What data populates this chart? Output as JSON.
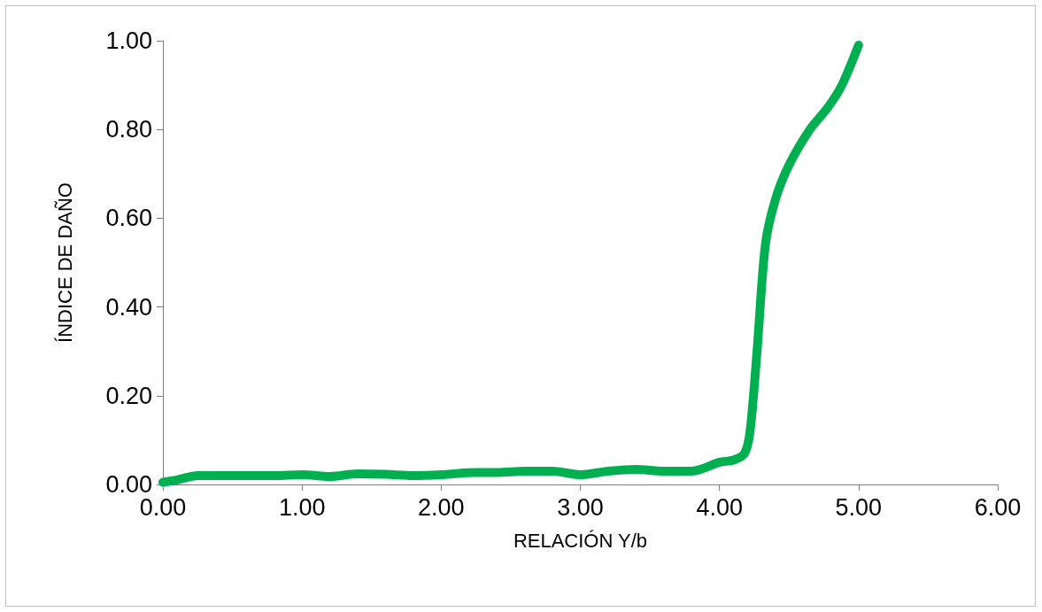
{
  "chart_data": {
    "type": "line",
    "xlabel": "RELACIÓN Y/b",
    "ylabel": "ÍNDICE DE DAÑO",
    "x": [
      0,
      0.1,
      0.25,
      0.5,
      0.8,
      1.0,
      1.2,
      1.4,
      1.6,
      1.8,
      2.0,
      2.25,
      2.4,
      2.6,
      2.8,
      3.0,
      3.2,
      3.4,
      3.6,
      3.8,
      3.9,
      4.0,
      4.1,
      4.18,
      4.22,
      4.27,
      4.33,
      4.4,
      4.5,
      4.65,
      4.78,
      4.88,
      5.0
    ],
    "series": [
      {
        "color": "#00b050",
        "values": [
          0.005,
          0.01,
          0.02,
          0.02,
          0.02,
          0.022,
          0.018,
          0.024,
          0.023,
          0.02,
          0.022,
          0.027,
          0.027,
          0.03,
          0.03,
          0.022,
          0.03,
          0.034,
          0.03,
          0.03,
          0.038,
          0.05,
          0.055,
          0.07,
          0.12,
          0.3,
          0.54,
          0.64,
          0.72,
          0.8,
          0.85,
          0.9,
          0.99
        ]
      }
    ],
    "xlim": [
      0,
      6
    ],
    "ylim": [
      0,
      1
    ],
    "xticks": [
      {
        "value": 0,
        "label": "0.00"
      },
      {
        "value": 1,
        "label": "1.00"
      },
      {
        "value": 2,
        "label": "2.00"
      },
      {
        "value": 3,
        "label": "3.00"
      },
      {
        "value": 4,
        "label": "4.00"
      },
      {
        "value": 5,
        "label": "5.00"
      },
      {
        "value": 6,
        "label": "6.00"
      }
    ],
    "yticks": [
      {
        "value": 0,
        "label": "0.00"
      },
      {
        "value": 0.2,
        "label": "0.20"
      },
      {
        "value": 0.4,
        "label": "0.40"
      },
      {
        "value": 0.6,
        "label": "0.60"
      },
      {
        "value": 0.8,
        "label": "0.80"
      },
      {
        "value": 1,
        "label": "1.00"
      }
    ],
    "grid": false,
    "line_style": "solid"
  }
}
